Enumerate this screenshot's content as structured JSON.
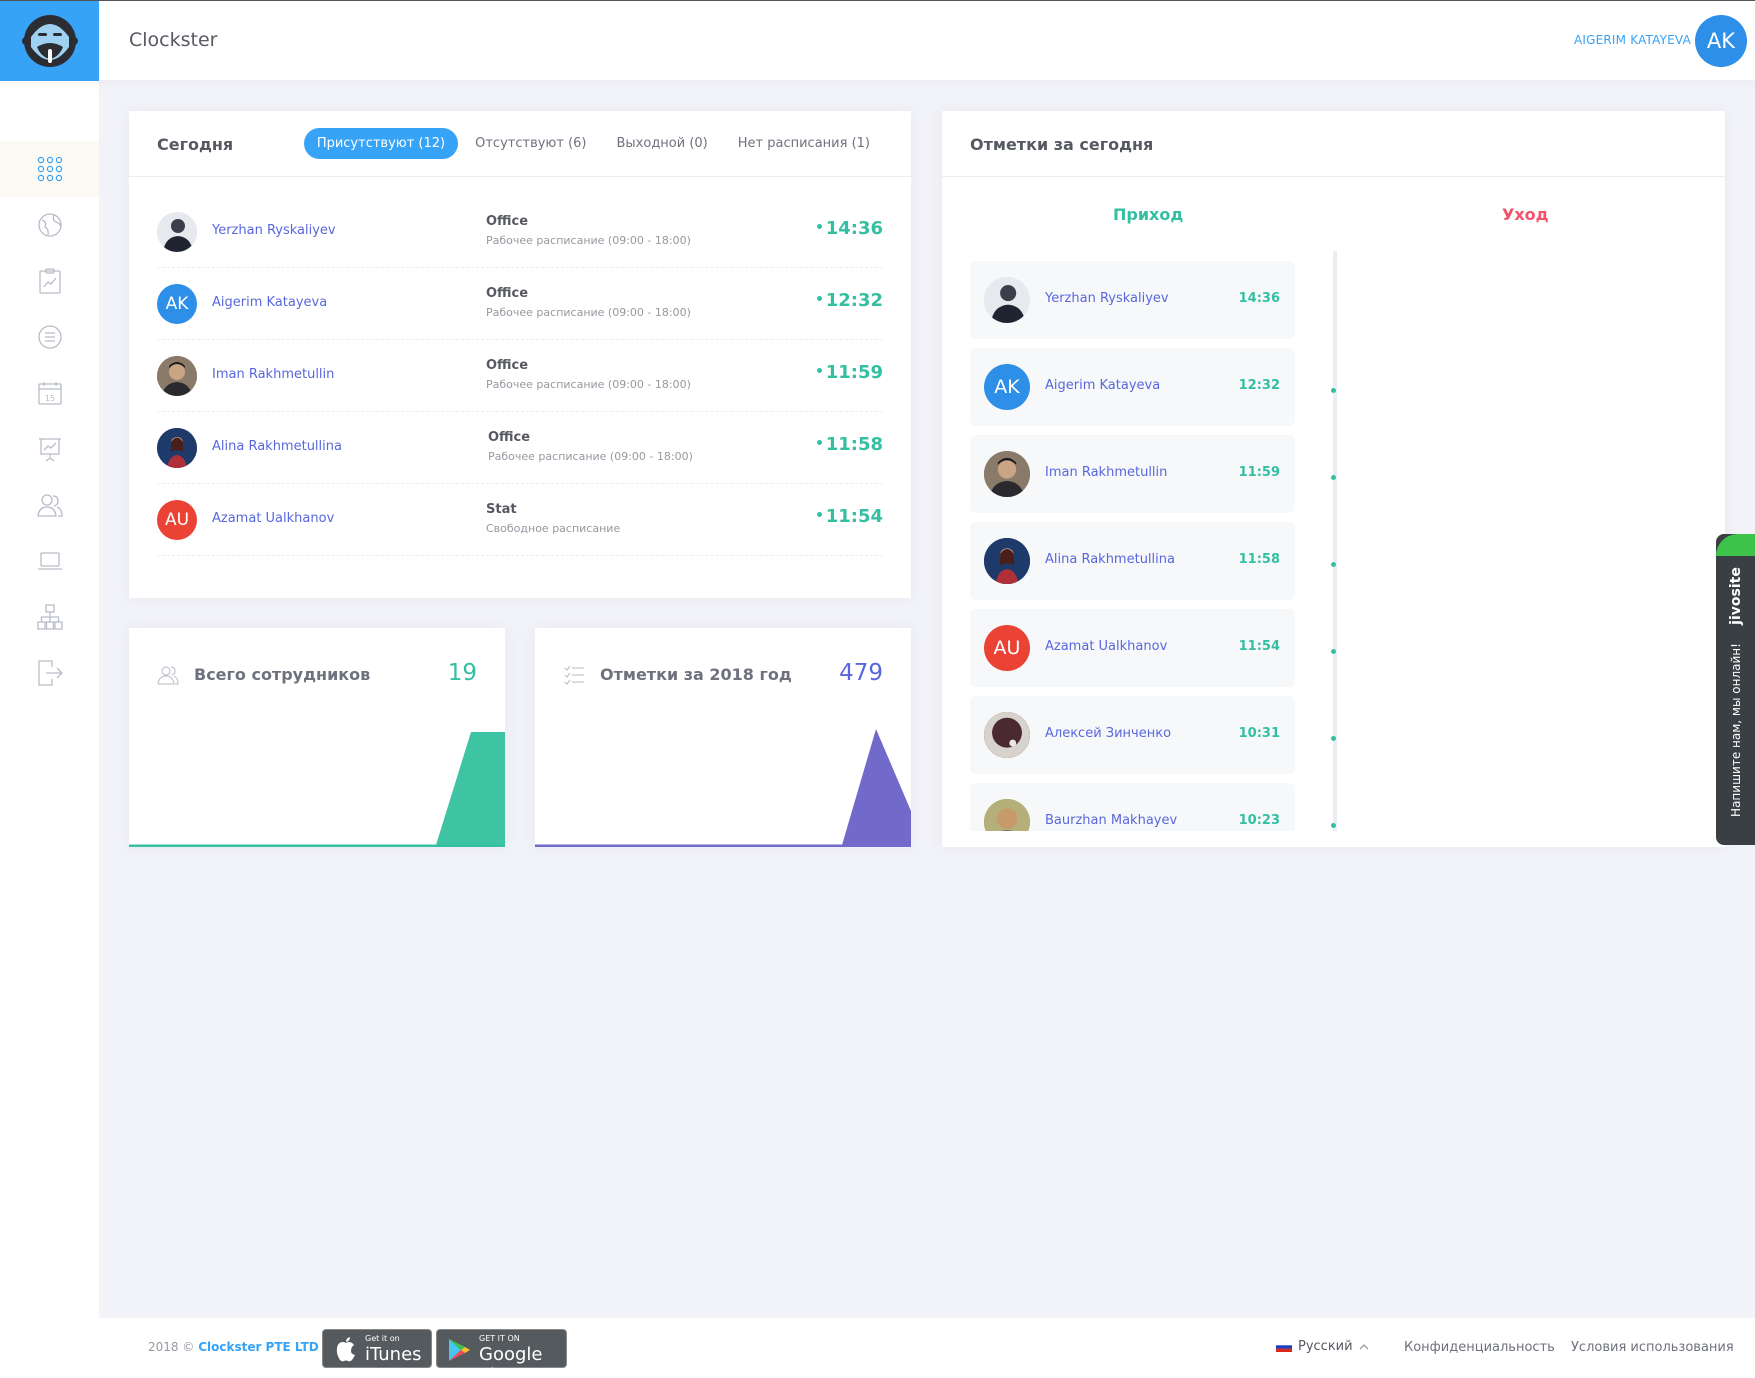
{
  "app": {
    "title": "Clockster"
  },
  "user": {
    "name": "AIGERIM KATAYEVA",
    "initials": "AK"
  },
  "colors": {
    "accent": "#36a3f7",
    "success": "#34bfa3",
    "danger": "#f4516c",
    "purple": "#5867dd"
  },
  "sidebar": {
    "items": [
      {
        "icon": "dashboard-grid-icon",
        "active": true
      },
      {
        "icon": "globe-icon"
      },
      {
        "icon": "clipboard-chart-icon"
      },
      {
        "icon": "list-icon"
      },
      {
        "icon": "calendar-icon",
        "day": "15"
      },
      {
        "icon": "presentation-chart-icon"
      },
      {
        "icon": "users-icon"
      },
      {
        "icon": "laptop-icon"
      },
      {
        "icon": "org-structure-icon"
      },
      {
        "icon": "logout-icon"
      }
    ]
  },
  "today": {
    "title": "Сегодня",
    "tabs": [
      {
        "label": "Присутствуют (12)",
        "active": true
      },
      {
        "label": "Отсутствуют (6)"
      },
      {
        "label": "Выходной (0)"
      },
      {
        "label": "Нет расписания (1)"
      }
    ],
    "rows": [
      {
        "name": "Yerzhan Ryskaliyev",
        "place": "Office",
        "schedule": "Рабочее расписание (09:00 - 18:00)",
        "time": "14:36",
        "avatar": "photo"
      },
      {
        "name": "Aigerim Katayeva",
        "place": "Office",
        "schedule": "Рабочее расписание (09:00 - 18:00)",
        "time": "12:32",
        "initials": "AK",
        "avatar_color": "#2d8fe8"
      },
      {
        "name": "Iman Rakhmetullin",
        "place": "Office",
        "schedule": "Рабочее расписание (09:00 - 18:00)",
        "time": "11:59",
        "avatar": "photo"
      },
      {
        "name": "Alina Rakhmetullina",
        "place": "Office",
        "schedule": "Рабочее расписание (09:00 - 18:00)",
        "time": "11:58",
        "avatar": "photo"
      },
      {
        "name": "Azamat Ualkhanov",
        "place": "Stat",
        "schedule": "Свободное расписание",
        "time": "11:54",
        "initials": "AU",
        "avatar_color": "#ea4335"
      }
    ]
  },
  "stats": {
    "employees": {
      "label": "Всего сотрудников",
      "value": "19",
      "icon": "users-outline-icon"
    },
    "marks": {
      "label": "Отметки за 2018 год",
      "value": "479",
      "icon": "checklist-icon"
    }
  },
  "log": {
    "title": "Отметки за сегодня",
    "in_label": "Приход",
    "out_label": "Уход",
    "items": [
      {
        "name": "Yerzhan Ryskaliyev",
        "time": "14:36",
        "avatar": "photo"
      },
      {
        "name": "Aigerim Katayeva",
        "time": "12:32",
        "initials": "AK",
        "avatar_color": "#2d8fe8"
      },
      {
        "name": "Iman Rakhmetullin",
        "time": "11:59",
        "avatar": "photo"
      },
      {
        "name": "Alina Rakhmetullina",
        "time": "11:58",
        "avatar": "photo"
      },
      {
        "name": "Azamat Ualkhanov",
        "time": "11:54",
        "initials": "AU",
        "avatar_color": "#ea4335"
      },
      {
        "name": "Алексей Зинченко",
        "time": "10:31",
        "avatar": "photo"
      },
      {
        "name": "Baurzhan Makhayev",
        "time": "10:23",
        "avatar": "photo"
      }
    ]
  },
  "chat": {
    "brand": "jivosite",
    "text": "Напишите нам, мы онлайн!"
  },
  "footer": {
    "copyright": "2018 ©",
    "company": "Clockster PTE LTD",
    "itunes": {
      "small": "Get it on",
      "big": "iTunes"
    },
    "gplay": {
      "small": "GET IT ON",
      "big": "Google Play"
    },
    "language": "Русский",
    "privacy": "Конфиденциальность",
    "terms": "Условия использования"
  }
}
